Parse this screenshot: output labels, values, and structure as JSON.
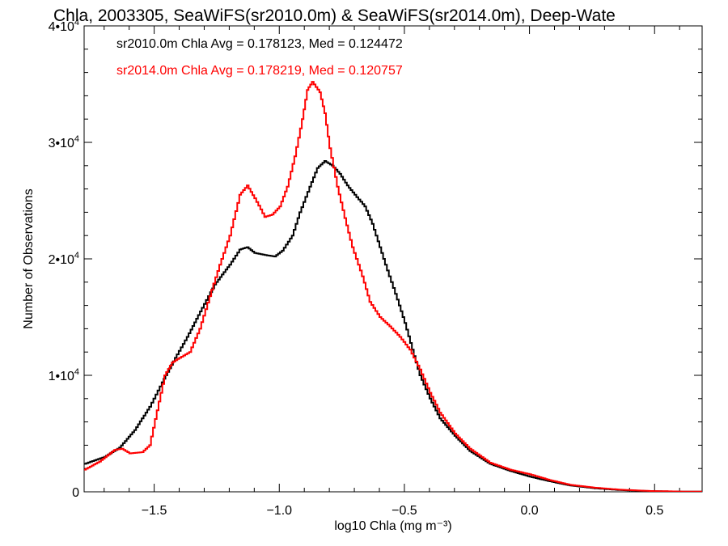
{
  "chart_data": {
    "type": "line",
    "title": "Chla, 2003305, SeaWiFS(sr2010.0m) & SeaWiFS(sr2014.0m), Deep-Wate",
    "xlabel": "log10 Chla (mg m⁻³)",
    "ylabel": "Number of Observations",
    "xlim": [
      -1.78,
      0.69
    ],
    "ylim": [
      0,
      40000
    ],
    "x_ticks": [
      {
        "value": -1.5,
        "label": "−1.5"
      },
      {
        "value": -1.0,
        "label": "−1.0"
      },
      {
        "value": -0.5,
        "label": "−0.5"
      },
      {
        "value": 0.0,
        "label": "0.0"
      },
      {
        "value": 0.5,
        "label": "0.5"
      }
    ],
    "y_ticks": [
      {
        "value": 0,
        "base": "0",
        "exp": ""
      },
      {
        "value": 10000,
        "base": "1•10",
        "exp": "4"
      },
      {
        "value": 20000,
        "base": "2•10",
        "exp": "4"
      },
      {
        "value": 30000,
        "base": "3•10",
        "exp": "4"
      },
      {
        "value": 40000,
        "base": "4•10",
        "exp": "4"
      }
    ],
    "annotations": [
      {
        "text": "sr2010.0m Chla Avg = 0.178123, Med = 0.124472",
        "color": "#000000"
      },
      {
        "text": "sr2014.0m Chla Avg = 0.178219, Med = 0.120757",
        "color": "#ff0000"
      }
    ],
    "series": [
      {
        "color": "#000000",
        "points": [
          [
            -1.78,
            2400
          ],
          [
            -1.7,
            3000
          ],
          [
            -1.64,
            3800
          ],
          [
            -1.58,
            5300
          ],
          [
            -1.52,
            7300
          ],
          [
            -1.47,
            9400
          ],
          [
            -1.41,
            11800
          ],
          [
            -1.37,
            13300
          ],
          [
            -1.31,
            15800
          ],
          [
            -1.26,
            17800
          ],
          [
            -1.2,
            19500
          ],
          [
            -1.16,
            20800
          ],
          [
            -1.13,
            21000
          ],
          [
            -1.1,
            20500
          ],
          [
            -1.05,
            20300
          ],
          [
            -1.02,
            20200
          ],
          [
            -0.99,
            20700
          ],
          [
            -0.95,
            22000
          ],
          [
            -0.92,
            24000
          ],
          [
            -0.88,
            26200
          ],
          [
            -0.85,
            27800
          ],
          [
            -0.82,
            28400
          ],
          [
            -0.79,
            28000
          ],
          [
            -0.76,
            27300
          ],
          [
            -0.73,
            26300
          ],
          [
            -0.7,
            25500
          ],
          [
            -0.66,
            24500
          ],
          [
            -0.63,
            23000
          ],
          [
            -0.6,
            21000
          ],
          [
            -0.57,
            19000
          ],
          [
            -0.53,
            16500
          ],
          [
            -0.5,
            14500
          ],
          [
            -0.47,
            12200
          ],
          [
            -0.44,
            10000
          ],
          [
            -0.4,
            8000
          ],
          [
            -0.36,
            6300
          ],
          [
            -0.3,
            4800
          ],
          [
            -0.24,
            3500
          ],
          [
            -0.16,
            2400
          ],
          [
            -0.08,
            1800
          ],
          [
            0.0,
            1300
          ],
          [
            0.08,
            900
          ],
          [
            0.16,
            550
          ],
          [
            0.26,
            300
          ],
          [
            0.36,
            150
          ],
          [
            0.48,
            60
          ],
          [
            0.6,
            20
          ],
          [
            0.69,
            10
          ]
        ]
      },
      {
        "color": "#ff0000",
        "points": [
          [
            -1.78,
            1900
          ],
          [
            -1.72,
            2600
          ],
          [
            -1.66,
            3600
          ],
          [
            -1.63,
            3700
          ],
          [
            -1.6,
            3300
          ],
          [
            -1.55,
            3400
          ],
          [
            -1.52,
            4000
          ],
          [
            -1.49,
            7000
          ],
          [
            -1.46,
            10000
          ],
          [
            -1.43,
            11100
          ],
          [
            -1.4,
            11500
          ],
          [
            -1.36,
            12000
          ],
          [
            -1.32,
            14000
          ],
          [
            -1.28,
            16800
          ],
          [
            -1.24,
            19500
          ],
          [
            -1.2,
            22000
          ],
          [
            -1.16,
            25500
          ],
          [
            -1.13,
            26300
          ],
          [
            -1.1,
            25200
          ],
          [
            -1.06,
            23600
          ],
          [
            -1.03,
            23800
          ],
          [
            -1.0,
            24500
          ],
          [
            -0.97,
            26200
          ],
          [
            -0.94,
            28800
          ],
          [
            -0.91,
            32000
          ],
          [
            -0.89,
            34500
          ],
          [
            -0.87,
            35200
          ],
          [
            -0.84,
            34300
          ],
          [
            -0.82,
            32500
          ],
          [
            -0.8,
            29500
          ],
          [
            -0.77,
            26200
          ],
          [
            -0.74,
            23500
          ],
          [
            -0.71,
            21000
          ],
          [
            -0.67,
            18500
          ],
          [
            -0.64,
            16300
          ],
          [
            -0.6,
            15000
          ],
          [
            -0.56,
            14200
          ],
          [
            -0.52,
            13300
          ],
          [
            -0.48,
            12200
          ],
          [
            -0.44,
            10500
          ],
          [
            -0.4,
            8500
          ],
          [
            -0.36,
            6800
          ],
          [
            -0.3,
            5000
          ],
          [
            -0.24,
            3700
          ],
          [
            -0.16,
            2500
          ],
          [
            -0.08,
            1900
          ],
          [
            0.0,
            1500
          ],
          [
            0.08,
            1000
          ],
          [
            0.16,
            600
          ],
          [
            0.26,
            350
          ],
          [
            0.36,
            180
          ],
          [
            0.48,
            70
          ],
          [
            0.6,
            25
          ],
          [
            0.69,
            10
          ]
        ]
      }
    ]
  }
}
